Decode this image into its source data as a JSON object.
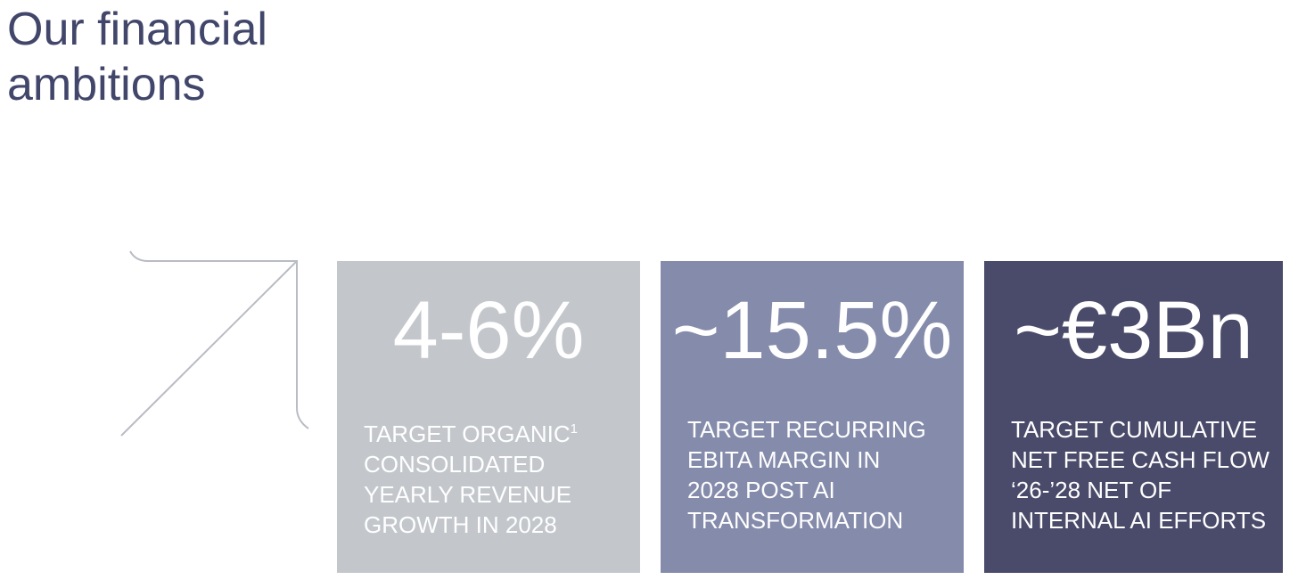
{
  "header": {
    "title_lines": [
      "Our financial",
      "ambitions"
    ]
  },
  "cards": [
    {
      "value": "4-6%",
      "lines": [
        "TARGET ORGANIC",
        "CONSOLIDATED",
        "YEARLY REVENUE",
        "GROWTH IN 2028"
      ],
      "footnote": "1",
      "color": "#c3c7cc"
    },
    {
      "value": "~15.5%",
      "lines": [
        "TARGET RECURRING",
        "EBITA MARGIN IN",
        "2028 POST AI",
        "TRANSFORMATION"
      ],
      "color": "#858bab"
    },
    {
      "value": "~€3Bn",
      "lines": [
        "TARGET CUMULATIVE",
        "NET FREE CASH FLOW",
        "‘26-’28 NET OF",
        "INTERNAL AI EFFORTS"
      ],
      "color": "#4a4a6a"
    }
  ]
}
